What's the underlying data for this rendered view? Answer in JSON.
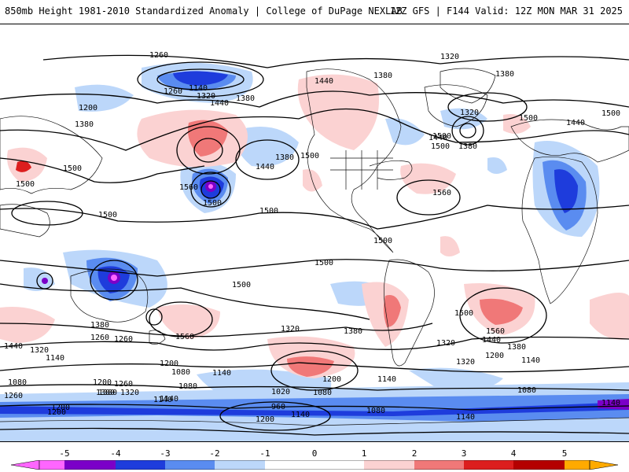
{
  "header": {
    "title_left": "850mb Height 1981-2010 Standardized Anomaly | College of DuPage NEXLAB",
    "title_right": "12Z GFS | F144 Valid: 12Z MON MAR 31 2025"
  },
  "contour_labels": [
    "1260",
    "1320",
    "1380",
    "1140",
    "1200",
    "1260",
    "1320",
    "1380",
    "1440",
    "1380",
    "1440",
    "1500",
    "1320",
    "1380",
    "1440",
    "1500",
    "1500",
    "1500",
    "1560",
    "1500",
    "1500",
    "1380",
    "1440",
    "1500",
    "1560",
    "1500",
    "1380",
    "1440",
    "1500",
    "1500",
    "1500",
    "1500",
    "1500",
    "1560",
    "1380",
    "1320",
    "1260",
    "1440",
    "1320",
    "1260",
    "1200",
    "1080",
    "1140",
    "1380",
    "1320",
    "1140",
    "1200",
    "1080",
    "1080",
    "1140",
    "1260",
    "1200",
    "1200",
    "1140",
    "1080",
    "1020",
    "960",
    "1140",
    "1140",
    "1080",
    "1200",
    "1140",
    "1080",
    "1200",
    "1140",
    "1320",
    "1380",
    "1380",
    "1440",
    "1560",
    "1500",
    "1140",
    "1200",
    "1260",
    "1380",
    "1320"
  ],
  "colorbar": {
    "ticks": [
      "-5",
      "-4",
      "-3",
      "-2",
      "-1",
      "0",
      "1",
      "2",
      "3",
      "4",
      "5"
    ],
    "colors": {
      "neg5": "#ff66ff",
      "neg4": "#7b00c8",
      "neg3": "#1e3cdc",
      "neg2": "#5a8cf0",
      "neg1": "#bcd7fa",
      "zero": "#ffffff",
      "pos1": "#fbd2d2",
      "pos2": "#f07878",
      "pos3": "#dc1e1e",
      "pos4": "#b40000",
      "pos5": "#ffaa00"
    }
  }
}
